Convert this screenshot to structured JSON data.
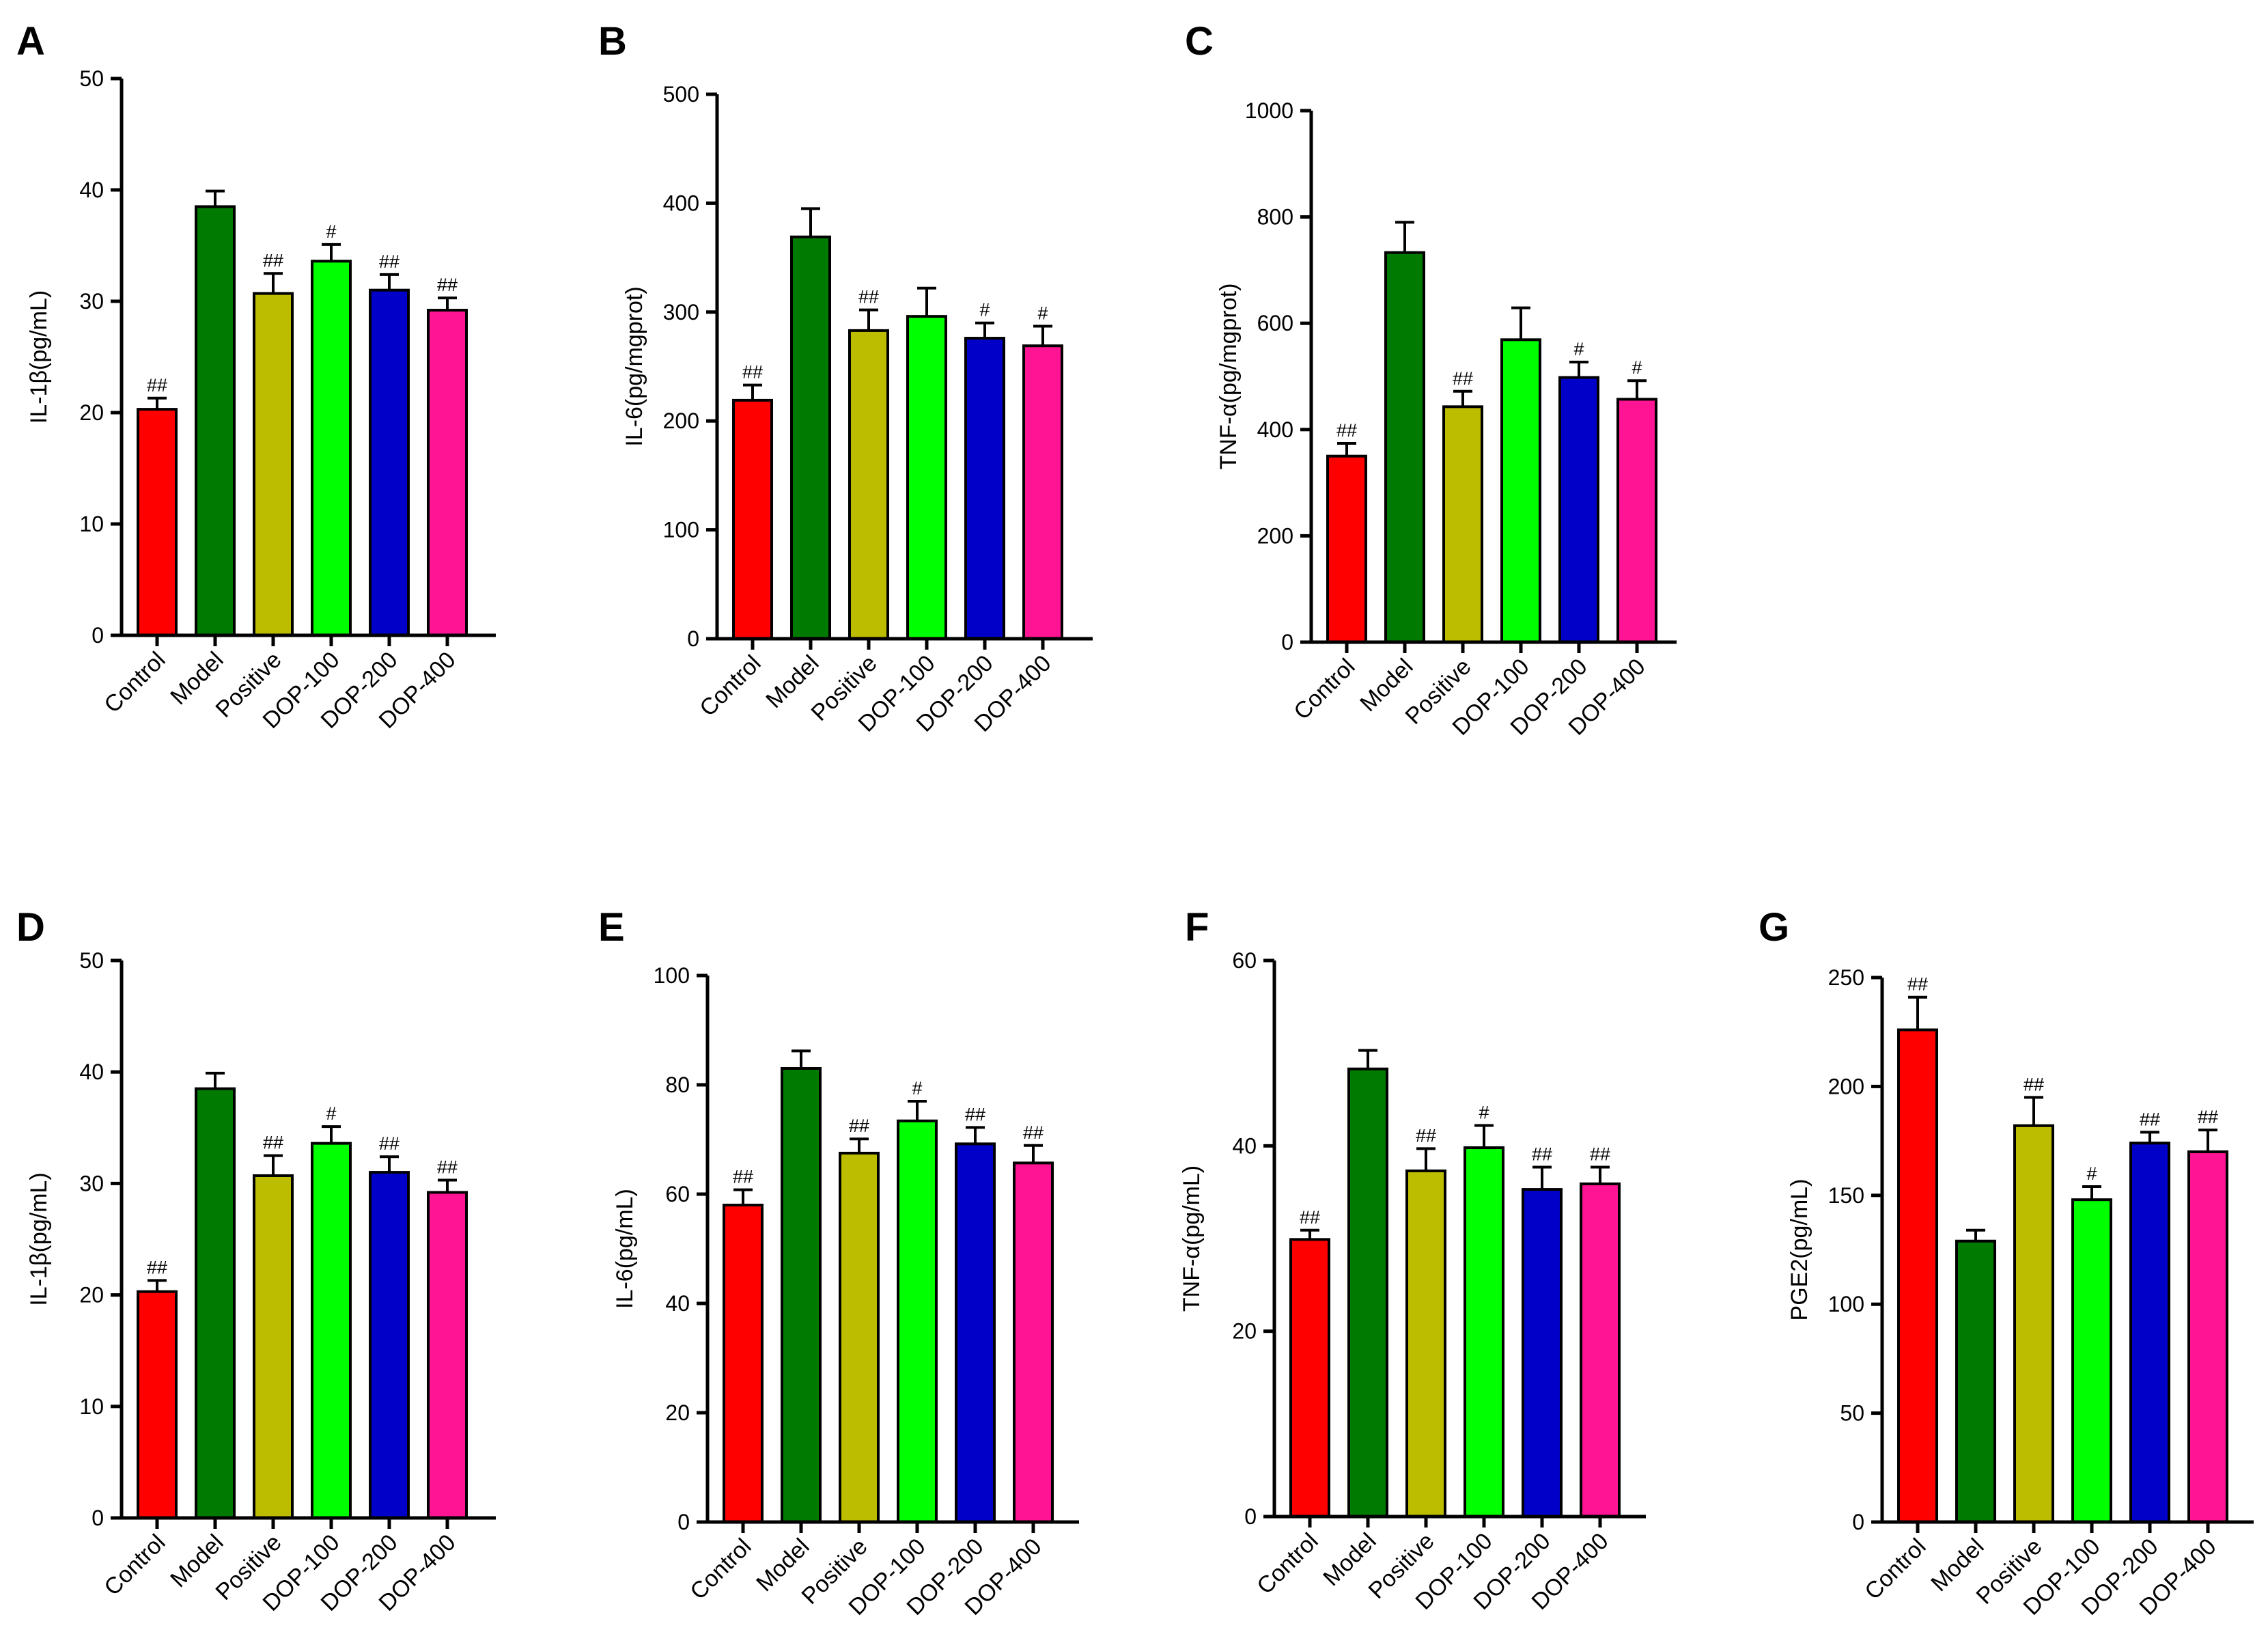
{
  "chart_data": [
    {
      "panel": "A",
      "type": "bar",
      "ylabel": "IL-1β(pg/mL)",
      "ylim": [
        0,
        50
      ],
      "yticks": [
        0,
        10,
        20,
        30,
        40,
        50
      ],
      "categories": [
        "Control",
        "Model",
        "Positive",
        "DOP-100",
        "DOP-200",
        "DOP-400"
      ],
      "values": [
        20.3,
        38.5,
        30.7,
        33.6,
        31.0,
        29.2
      ],
      "errors": [
        1.0,
        1.4,
        1.8,
        1.5,
        1.4,
        1.1
      ],
      "significance": [
        "##",
        "",
        "##",
        "#",
        "##",
        "##"
      ]
    },
    {
      "panel": "B",
      "type": "bar",
      "ylabel": "IL-6(pg/mgprot)",
      "ylim": [
        0,
        500
      ],
      "yticks": [
        0,
        100,
        200,
        300,
        400,
        500
      ],
      "categories": [
        "Control",
        "Model",
        "Positive",
        "DOP-100",
        "DOP-200",
        "DOP-400"
      ],
      "values": [
        219,
        369,
        283,
        296,
        276,
        269
      ],
      "errors": [
        14,
        26,
        19,
        26,
        14,
        18
      ],
      "significance": [
        "##",
        "",
        "##",
        "",
        "#",
        "#"
      ]
    },
    {
      "panel": "C",
      "type": "bar",
      "ylabel": "TNF-α(pg/mgprot)",
      "ylim": [
        0,
        1000
      ],
      "yticks": [
        0,
        200,
        400,
        600,
        800,
        1000
      ],
      "categories": [
        "Control",
        "Model",
        "Positive",
        "DOP-100",
        "DOP-200",
        "DOP-400"
      ],
      "values": [
        350,
        733,
        443,
        569,
        498,
        457
      ],
      "errors": [
        24,
        57,
        29,
        60,
        29,
        35
      ],
      "significance": [
        "##",
        "",
        "##",
        "",
        "#",
        "#"
      ]
    },
    {
      "panel": "D",
      "type": "bar",
      "ylabel": "IL-1β(pg/mL)",
      "ylim": [
        0,
        50
      ],
      "yticks": [
        0,
        10,
        20,
        30,
        40,
        50
      ],
      "categories": [
        "Control",
        "Model",
        "Positive",
        "DOP-100",
        "DOP-200",
        "DOP-400"
      ],
      "values": [
        20.3,
        38.5,
        30.7,
        33.6,
        31.0,
        29.2
      ],
      "errors": [
        1.0,
        1.4,
        1.8,
        1.5,
        1.4,
        1.1
      ],
      "significance": [
        "##",
        "",
        "##",
        "#",
        "##",
        "##"
      ]
    },
    {
      "panel": "E",
      "type": "bar",
      "ylabel": "IL-6(pg/mL)",
      "ylim": [
        0,
        100
      ],
      "yticks": [
        0,
        20,
        40,
        60,
        80,
        100
      ],
      "categories": [
        "Control",
        "Model",
        "Positive",
        "DOP-100",
        "DOP-200",
        "DOP-400"
      ],
      "values": [
        58,
        83,
        67.5,
        73.4,
        69.2,
        65.7
      ],
      "errors": [
        2.8,
        3.2,
        2.6,
        3.6,
        3.0,
        3.2
      ],
      "significance": [
        "##",
        "",
        "##",
        "#",
        "##",
        "##"
      ]
    },
    {
      "panel": "F",
      "type": "bar",
      "ylabel": "TNF-α(pg/mL)",
      "ylim": [
        0,
        60
      ],
      "yticks": [
        0,
        20,
        40,
        60
      ],
      "categories": [
        "Control",
        "Model",
        "Positive",
        "DOP-100",
        "DOP-200",
        "DOP-400"
      ],
      "values": [
        29.9,
        48.3,
        37.3,
        39.8,
        35.3,
        35.9
      ],
      "errors": [
        1.0,
        2.0,
        2.4,
        2.4,
        2.4,
        1.8
      ],
      "significance": [
        "##",
        "",
        "##",
        "#",
        "##",
        "##"
      ]
    },
    {
      "panel": "G",
      "type": "bar",
      "ylabel": "PGE2(pg/mL)",
      "ylim": [
        0,
        250
      ],
      "yticks": [
        0,
        50,
        100,
        150,
        200,
        250
      ],
      "categories": [
        "Control",
        "Model",
        "Positive",
        "DOP-100",
        "DOP-200",
        "DOP-400"
      ],
      "values": [
        226,
        129,
        182,
        148,
        174,
        170
      ],
      "errors": [
        15,
        5,
        13,
        6,
        5,
        10
      ],
      "significance": [
        "##",
        "",
        "##",
        "#",
        "##",
        "##"
      ]
    }
  ],
  "colors": [
    "#ff0000",
    "#007a00",
    "#bdbd00",
    "#00ff00",
    "#0000c8",
    "#ff1493"
  ]
}
